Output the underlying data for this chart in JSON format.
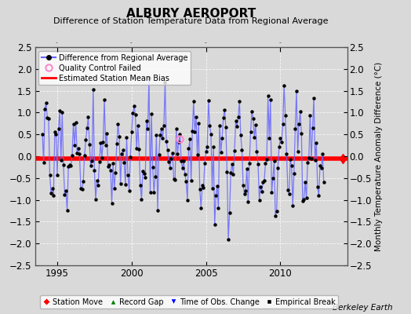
{
  "title": "ALBURY AEROPORT",
  "subtitle": "Difference of Station Temperature Data from Regional Average",
  "ylabel": "Monthly Temperature Anomaly Difference (°C)",
  "xlim": [
    1993.5,
    2014.5
  ],
  "ylim": [
    -2.5,
    2.5
  ],
  "yticks": [
    -2.5,
    -2,
    -1.5,
    -1,
    -0.5,
    0,
    0.5,
    1,
    1.5,
    2,
    2.5
  ],
  "xticks": [
    1995,
    2000,
    2005,
    2010
  ],
  "mean_bias": -0.05,
  "bg_color": "#d9d9d9",
  "plot_bg_color": "#d9d9d9",
  "line_color": "#6666ff",
  "bias_color": "#ff0000",
  "berkeley_earth_text": "Berkeley Earth",
  "seed": 17,
  "n_months": 228,
  "start_year": 1994.0
}
